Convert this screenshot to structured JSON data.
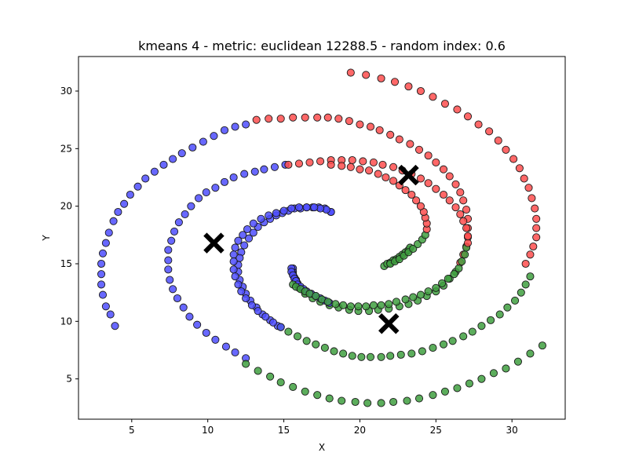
{
  "chart_data": {
    "type": "scatter",
    "title": "kmeans 4 - metric: euclidean 12288.5 - random index: 0.6",
    "xlabel": "X",
    "ylabel": "Y",
    "xlim": [
      1.5,
      33.5
    ],
    "ylim": [
      1.5,
      33
    ],
    "xticks": [
      5,
      10,
      15,
      20,
      25,
      30
    ],
    "yticks": [
      5,
      10,
      15,
      20,
      25,
      30
    ],
    "grid": false,
    "colors": {
      "red": "#ff4d4d",
      "blue": "#4d4dff",
      "green": "#3f9f3f",
      "centroid": "#000000"
    },
    "spirals": [
      {
        "start_angle_deg": -160,
        "cx": 17.0,
        "cy": 15.5,
        "r0": 2.0,
        "r1": 14.2,
        "sweep_deg": 900,
        "n": 162,
        "cluster_order": [
          "blue",
          "green",
          "red",
          "green",
          "blue",
          "red",
          "green",
          "blue",
          "red"
        ]
      },
      {
        "start_angle_deg": 20,
        "cx": 21.0,
        "cy": 17.5,
        "r0": 3.0,
        "r1": 14.0,
        "sweep_deg": 900,
        "n": 150,
        "cluster_order": []
      }
    ],
    "centroids": [
      {
        "x": 10.4,
        "y": 16.8
      },
      {
        "x": 23.2,
        "y": 22.7
      },
      {
        "x": 21.9,
        "y": 9.8
      }
    ],
    "segments": [
      {
        "points": [
          [
            15.5,
            14.6
          ],
          [
            15.5,
            14.3
          ],
          [
            15.6,
            14.0
          ],
          [
            15.7,
            13.7
          ],
          [
            15.8,
            13.5
          ],
          [
            15.9,
            13.2
          ],
          [
            16.1,
            13.0
          ],
          [
            16.3,
            12.8
          ],
          [
            16.5,
            12.6
          ],
          [
            16.8,
            12.4
          ],
          [
            17.1,
            12.2
          ],
          [
            17.4,
            12.0
          ],
          [
            17.7,
            11.8
          ],
          [
            18.0,
            11.6
          ]
        ],
        "cluster": "blue"
      },
      {
        "points": [
          [
            16.2,
            12.9
          ],
          [
            16.4,
            12.7
          ],
          [
            16.7,
            12.5
          ],
          [
            17.0,
            12.3
          ],
          [
            17.3,
            12.1
          ],
          [
            17.7,
            11.9
          ],
          [
            18.1,
            11.6
          ],
          [
            18.5,
            11.4
          ],
          [
            19.0,
            11.2
          ],
          [
            19.5,
            11.1
          ],
          [
            20.0,
            11.0
          ],
          [
            20.5,
            11.0
          ],
          [
            21.0,
            11.0
          ],
          [
            21.5,
            11.1
          ],
          [
            22.0,
            11.1
          ],
          [
            22.5,
            11.2
          ],
          [
            23.0,
            11.4
          ],
          [
            23.6,
            11.6
          ],
          [
            24.1,
            11.8
          ],
          [
            24.6,
            12.0
          ],
          [
            25.1,
            12.3
          ],
          [
            25.6,
            12.6
          ],
          [
            26.0,
            13.0
          ],
          [
            26.4,
            13.4
          ],
          [
            26.8,
            13.8
          ],
          [
            27.1,
            14.3
          ],
          [
            27.3,
            14.9
          ],
          [
            27.5,
            15.5
          ],
          [
            27.6,
            16.1
          ]
        ],
        "cluster": "green"
      },
      {
        "points": [
          [
            27.6,
            16.8
          ],
          [
            27.6,
            17.4
          ],
          [
            27.5,
            18.1
          ],
          [
            27.3,
            18.7
          ],
          [
            27.1,
            19.3
          ],
          [
            26.8,
            19.9
          ],
          [
            26.4,
            20.5
          ],
          [
            26.0,
            21.0
          ],
          [
            25.5,
            21.5
          ],
          [
            25.0,
            22.0
          ],
          [
            24.5,
            22.4
          ],
          [
            23.9,
            22.8
          ],
          [
            23.3,
            23.1
          ],
          [
            22.7,
            23.4
          ],
          [
            22.0,
            23.6
          ],
          [
            21.4,
            23.8
          ],
          [
            20.7,
            23.9
          ],
          [
            20.0,
            24.0
          ],
          [
            19.3,
            24.0
          ],
          [
            18.6,
            24.0
          ],
          [
            17.9,
            23.9
          ],
          [
            17.2,
            23.8
          ],
          [
            16.5,
            23.7
          ],
          [
            15.8,
            23.6
          ]
        ],
        "cluster": "red"
      },
      {
        "points": [
          [
            22.0,
            15.0
          ],
          [
            22.3,
            15.2
          ],
          [
            22.6,
            15.4
          ],
          [
            22.9,
            15.7
          ],
          [
            23.2,
            16.0
          ],
          [
            23.5,
            16.3
          ],
          [
            23.8,
            16.7
          ],
          [
            24.1,
            17.1
          ],
          [
            24.3,
            17.5
          ]
        ],
        "cluster": "green"
      },
      {
        "points": [
          [
            24.4,
            18.0
          ],
          [
            24.4,
            18.5
          ],
          [
            24.3,
            19.0
          ],
          [
            24.2,
            19.5
          ],
          [
            24.0,
            20.0
          ],
          [
            23.7,
            20.5
          ],
          [
            23.4,
            21.0
          ],
          [
            23.0,
            21.4
          ],
          [
            22.6,
            21.8
          ],
          [
            22.2,
            22.2
          ],
          [
            21.7,
            22.5
          ],
          [
            21.2,
            22.8
          ],
          [
            20.6,
            23.1
          ],
          [
            20.0,
            23.2
          ],
          [
            19.4,
            23.4
          ],
          [
            18.8,
            23.5
          ],
          [
            18.1,
            23.6
          ]
        ],
        "cluster": "red"
      },
      {
        "points": [
          [
            18.1,
            19.5
          ],
          [
            17.8,
            19.7
          ],
          [
            17.4,
            19.8
          ],
          [
            17.0,
            19.9
          ],
          [
            16.5,
            19.9
          ],
          [
            16.0,
            19.9
          ],
          [
            15.5,
            19.8
          ],
          [
            15.0,
            19.6
          ],
          [
            14.5,
            19.4
          ],
          [
            14.0,
            19.2
          ],
          [
            13.5,
            18.9
          ],
          [
            13.0,
            18.5
          ],
          [
            12.6,
            18.0
          ],
          [
            12.3,
            17.5
          ],
          [
            12.0,
            17.0
          ],
          [
            11.8,
            16.4
          ],
          [
            11.7,
            15.8
          ],
          [
            11.7,
            15.2
          ],
          [
            11.7,
            14.5
          ],
          [
            11.8,
            13.9
          ],
          [
            12.0,
            13.2
          ],
          [
            12.2,
            12.6
          ],
          [
            12.5,
            12.0
          ],
          [
            12.9,
            11.4
          ],
          [
            13.3,
            10.9
          ],
          [
            13.8,
            10.4
          ],
          [
            14.3,
            9.9
          ],
          [
            14.8,
            9.5
          ]
        ],
        "cluster": "blue"
      }
    ]
  }
}
